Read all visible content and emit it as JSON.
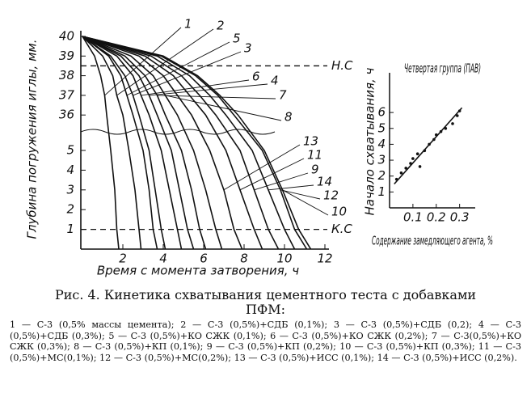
{
  "chart_data": [
    {
      "type": "line",
      "ylabel": "Глубина погружения иглы, мм.",
      "xlabel": "Время с момента затворения, ч",
      "xlim": [
        0,
        12.2
      ],
      "xticks": [
        2,
        4,
        6,
        8,
        10,
        12
      ],
      "yticks": [
        40,
        39,
        38,
        37,
        36,
        5,
        4,
        3,
        2,
        1
      ],
      "color": "#111111",
      "y": [
        40,
        39,
        38,
        37,
        36,
        5,
        3,
        1,
        0
      ],
      "series": [
        {
          "name": "1",
          "x": [
            0,
            0.6,
            0.9,
            1.1,
            1.2,
            1.4,
            1.6,
            1.7,
            1.8
          ]
        },
        {
          "name": "2",
          "x": [
            0,
            1.0,
            1.5,
            1.7,
            2.0,
            2.3,
            2.6,
            2.8,
            2.9
          ]
        },
        {
          "name": "5",
          "x": [
            0,
            1.3,
            1.9,
            2.2,
            2.5,
            3.0,
            3.3,
            3.5,
            3.7
          ]
        },
        {
          "name": "3",
          "x": [
            0,
            1.4,
            2.1,
            2.5,
            2.8,
            3.3,
            3.6,
            3.9,
            4.1
          ]
        },
        {
          "name": "6",
          "x": [
            0,
            1.7,
            2.5,
            2.9,
            3.3,
            3.9,
            4.3,
            4.7,
            4.9
          ]
        },
        {
          "name": "4",
          "x": [
            0,
            1.9,
            2.8,
            3.3,
            3.7,
            4.4,
            4.8,
            5.2,
            5.5
          ]
        },
        {
          "name": "7",
          "x": [
            0,
            2.1,
            3.1,
            3.7,
            4.1,
            4.9,
            5.4,
            5.8,
            6.1
          ]
        },
        {
          "name": "8",
          "x": [
            0,
            2.4,
            3.5,
            4.1,
            4.7,
            5.5,
            6.1,
            6.6,
            6.9
          ]
        },
        {
          "name": "13",
          "x": [
            0,
            2.8,
            4.0,
            4.7,
            5.4,
            6.3,
            7.0,
            7.5,
            7.9
          ]
        },
        {
          "name": "11",
          "x": [
            0,
            3.1,
            4.5,
            5.3,
            6.1,
            7.1,
            7.8,
            8.5,
            8.9
          ]
        },
        {
          "name": "9",
          "x": [
            0,
            3.4,
            4.9,
            5.8,
            6.6,
            7.8,
            8.5,
            9.2,
            9.7
          ]
        },
        {
          "name": "14",
          "x": [
            0,
            3.7,
            5.3,
            6.3,
            7.1,
            8.4,
            9.2,
            10.0,
            10.5
          ]
        },
        {
          "name": "12",
          "x": [
            0,
            3.9,
            5.6,
            6.7,
            7.5,
            8.9,
            9.8,
            10.5,
            11.1
          ]
        },
        {
          "name": "10",
          "x": [
            0,
            4.0,
            5.7,
            6.8,
            7.7,
            9.0,
            9.9,
            10.7,
            11.3
          ]
        }
      ],
      "annotations": [
        {
          "label": "Н.С",
          "value": 38.5
        },
        {
          "label": "К.С",
          "value": 1
        }
      ]
    },
    {
      "type": "scatter",
      "title": "Четвертая группа (ПАВ)",
      "ylabel": "Начало схватывания, ч",
      "xlabel": "Содержание замедляющего агента, %",
      "xlim": [
        0,
        0.36
      ],
      "xticks": [
        0.1,
        0.2,
        0.3
      ],
      "ylim": [
        0,
        8.5
      ],
      "yticks": [
        1,
        2,
        3,
        4,
        5,
        6
      ],
      "x": [
        0.03,
        0.05,
        0.07,
        0.09,
        0.1,
        0.12,
        0.13,
        0.15,
        0.17,
        0.19,
        0.2,
        0.22,
        0.24,
        0.27,
        0.29,
        0.3
      ],
      "values": [
        1.8,
        2.2,
        2.5,
        2.8,
        3.1,
        3.4,
        2.6,
        3.6,
        4.0,
        4.3,
        4.6,
        4.8,
        5.0,
        5.3,
        5.8,
        6.1
      ],
      "trend": {
        "x": [
          0.02,
          0.31
        ],
        "values": [
          1.5,
          6.3
        ]
      }
    }
  ],
  "caption": {
    "title": "Рис. 4. Кинетика схватывания цементного теста с добавками ПФМ:",
    "items": [
      "1 — С-3 (0,5% массы цемента);",
      "2 — С-3 (0,5%)+СДБ (0,1%);",
      "3 — С-3 (0,5%)+СДБ (0,2);",
      "4 — С-3 (0,5%)+СДБ (0,3%);",
      "5 — С-3 (0,5%)+КО СЖК (0,1%);",
      "6 — С-3 (0,5%)+КО СЖК (0,2%);",
      "7 — С-3(0,5%)+КО СЖК (0,3%);",
      "8 — С-3 (0,5%)+КП (0,1%);",
      "9 — С-3 (0,5%)+КП (0,2%);",
      "10 — С-3 (0,5%)+КП (0,3%);",
      "11 — С-3 (0,5%)+МС(0,1%);",
      "12 — С-3 (0,5%)+МС(0,2%);",
      "13 — С-3 (0,5%)+ИСС (0,1%);",
      "14 — С-3 (0,5%)+ИСС (0,2%)."
    ]
  }
}
